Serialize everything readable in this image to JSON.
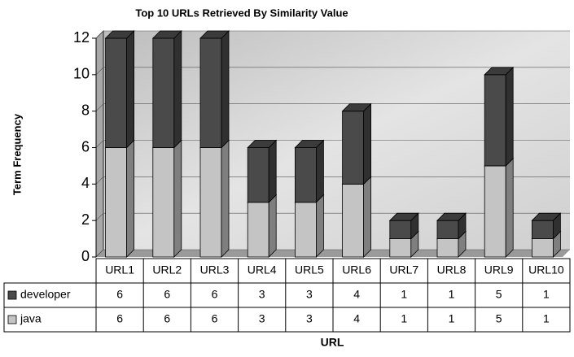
{
  "chart_data": {
    "type": "bar",
    "stacked": true,
    "title": "Top 10 URLs Retrieved By Similarity Value",
    "y_label": "Term Frequency",
    "x_label": "URL",
    "categories": [
      "URL1",
      "URL2",
      "URL3",
      "URL4",
      "URL5",
      "URL6",
      "URL7",
      "URL8",
      "URL9",
      "URL10"
    ],
    "series": [
      {
        "name": "developer",
        "color": "#4a4a4a",
        "values": [
          6,
          6,
          6,
          3,
          3,
          4,
          1,
          1,
          5,
          1
        ]
      },
      {
        "name": "java",
        "color": "#c4c4c4",
        "values": [
          6,
          6,
          6,
          3,
          3,
          4,
          1,
          1,
          5,
          1
        ]
      }
    ],
    "ylim": [
      0,
      12
    ],
    "yticks": [
      0,
      2,
      4,
      6,
      8,
      10,
      12
    ],
    "grid": true,
    "data_table": true
  }
}
